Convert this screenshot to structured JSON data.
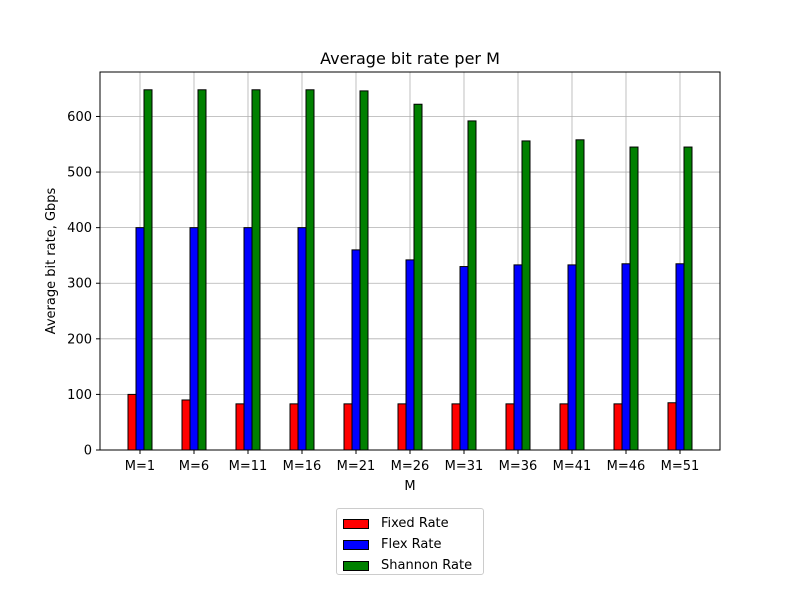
{
  "chart_data": {
    "type": "bar",
    "title": "Average bit rate per M",
    "xlabel": "M",
    "ylabel": "Average bit rate, Gbps",
    "categories": [
      "M=1",
      "M=6",
      "M=11",
      "M=16",
      "M=21",
      "M=26",
      "M=31",
      "M=36",
      "M=41",
      "M=46",
      "M=51"
    ],
    "ylim": [
      0,
      680
    ],
    "yticks": [
      0,
      100,
      200,
      300,
      400,
      500,
      600
    ],
    "grid": true,
    "legend_position": "below",
    "series": [
      {
        "name": "Fixed Rate",
        "color": "#ff0000",
        "values": [
          100,
          90,
          83,
          83,
          83,
          83,
          83,
          83,
          83,
          83,
          85
        ]
      },
      {
        "name": "Flex Rate",
        "color": "#0000ff",
        "values": [
          400,
          400,
          400,
          400,
          360,
          342,
          330,
          333,
          333,
          335,
          335
        ]
      },
      {
        "name": "Shannon Rate",
        "color": "#008000",
        "values": [
          648,
          648,
          648,
          648,
          646,
          622,
          592,
          556,
          558,
          545,
          545
        ]
      }
    ]
  }
}
